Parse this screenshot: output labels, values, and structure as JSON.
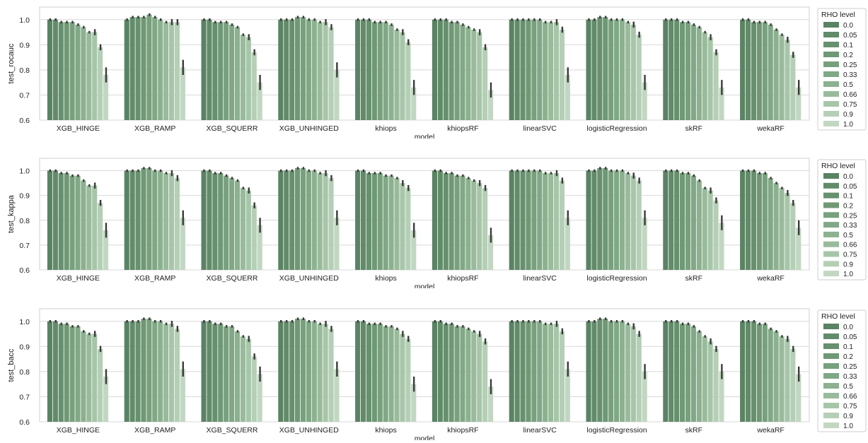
{
  "chart_data": [
    {
      "type": "bar",
      "xlabel": "model",
      "ylabel": "test_rocauc",
      "ylim": [
        0.6,
        1.05
      ],
      "yticks": [
        0.6,
        0.7,
        0.8,
        0.9,
        1.0
      ],
      "grid": true,
      "legend_title": "RHO level",
      "legend_position": "right",
      "legend": [
        "0.0",
        "0.05",
        "0.1",
        "0.2",
        "0.25",
        "0.33",
        "0.5",
        "0.66",
        "0.75",
        "0.9",
        "1.0"
      ],
      "categories": [
        "XGB_HINGE",
        "XGB_RAMP",
        "XGB_SQUERR",
        "XGB_UNHINGED",
        "khiops",
        "khiopsRF",
        "linearSVC",
        "logisticRegression",
        "skRF",
        "wekaRF"
      ],
      "series": [
        {
          "name": "0.0",
          "values": [
            1.0,
            1.0,
            1.0,
            1.0,
            1.0,
            1.0,
            1.0,
            1.0,
            1.0,
            1.0
          ]
        },
        {
          "name": "0.05",
          "values": [
            1.0,
            1.01,
            1.0,
            1.0,
            1.0,
            1.0,
            1.0,
            1.0,
            1.0,
            1.0
          ]
        },
        {
          "name": "0.1",
          "values": [
            0.99,
            1.01,
            0.99,
            1.0,
            1.0,
            1.0,
            1.0,
            1.01,
            1.0,
            0.99
          ]
        },
        {
          "name": "0.2",
          "values": [
            0.99,
            1.01,
            0.99,
            1.01,
            0.99,
            0.99,
            1.0,
            1.01,
            0.99,
            0.99
          ]
        },
        {
          "name": "0.25",
          "values": [
            0.99,
            1.02,
            0.99,
            1.01,
            0.99,
            0.99,
            1.0,
            1.0,
            0.99,
            0.99
          ]
        },
        {
          "name": "0.33",
          "values": [
            0.98,
            1.01,
            0.98,
            1.0,
            0.99,
            0.98,
            1.0,
            1.0,
            0.98,
            0.98
          ]
        },
        {
          "name": "0.5",
          "values": [
            0.97,
            1.0,
            0.97,
            1.0,
            0.98,
            0.97,
            0.99,
            1.0,
            0.97,
            0.96
          ]
        },
        {
          "name": "0.66",
          "values": [
            0.95,
            0.99,
            0.94,
            0.99,
            0.96,
            0.96,
            0.99,
            0.99,
            0.95,
            0.94
          ]
        },
        {
          "name": "0.75",
          "values": [
            0.95,
            0.99,
            0.93,
            0.99,
            0.95,
            0.95,
            0.99,
            0.98,
            0.93,
            0.92
          ]
        },
        {
          "name": "0.9",
          "values": [
            0.89,
            0.99,
            0.87,
            0.97,
            0.91,
            0.89,
            0.96,
            0.94,
            0.87,
            0.86
          ]
        },
        {
          "name": "1.0",
          "values": [
            0.78,
            0.81,
            0.75,
            0.8,
            0.73,
            0.72,
            0.78,
            0.75,
            0.73,
            0.73
          ]
        }
      ]
    },
    {
      "type": "bar",
      "xlabel": "model",
      "ylabel": "test_kappa",
      "ylim": [
        0.6,
        1.05
      ],
      "yticks": [
        0.6,
        0.7,
        0.8,
        0.9,
        1.0
      ],
      "grid": true,
      "legend_title": "RHO level",
      "legend_position": "right",
      "legend": [
        "0.0",
        "0.05",
        "0.1",
        "0.2",
        "0.25",
        "0.33",
        "0.5",
        "0.66",
        "0.75",
        "0.9",
        "1.0"
      ],
      "categories": [
        "XGB_HINGE",
        "XGB_RAMP",
        "XGB_SQUERR",
        "XGB_UNHINGED",
        "khiops",
        "khiopsRF",
        "linearSVC",
        "logisticRegression",
        "skRF",
        "wekaRF"
      ],
      "series": [
        {
          "name": "0.0",
          "values": [
            1.0,
            1.0,
            1.0,
            1.0,
            1.0,
            1.0,
            1.0,
            1.0,
            1.0,
            1.0
          ]
        },
        {
          "name": "0.05",
          "values": [
            1.0,
            1.0,
            1.0,
            1.0,
            1.0,
            1.0,
            1.0,
            1.0,
            1.0,
            1.0
          ]
        },
        {
          "name": "0.1",
          "values": [
            0.99,
            1.0,
            0.99,
            1.0,
            0.99,
            0.99,
            1.0,
            1.01,
            1.0,
            1.0
          ]
        },
        {
          "name": "0.2",
          "values": [
            0.99,
            1.01,
            0.99,
            1.01,
            0.99,
            0.99,
            1.0,
            1.01,
            0.99,
            0.99
          ]
        },
        {
          "name": "0.25",
          "values": [
            0.98,
            1.01,
            0.98,
            1.01,
            0.99,
            0.98,
            1.0,
            1.0,
            0.99,
            0.99
          ]
        },
        {
          "name": "0.33",
          "values": [
            0.98,
            1.0,
            0.97,
            1.0,
            0.98,
            0.98,
            1.0,
            1.0,
            0.98,
            0.97
          ]
        },
        {
          "name": "0.5",
          "values": [
            0.96,
            1.0,
            0.96,
            1.0,
            0.98,
            0.97,
            0.99,
            1.0,
            0.96,
            0.95
          ]
        },
        {
          "name": "0.66",
          "values": [
            0.94,
            0.99,
            0.93,
            0.99,
            0.97,
            0.96,
            0.99,
            0.99,
            0.93,
            0.93
          ]
        },
        {
          "name": "0.75",
          "values": [
            0.94,
            0.99,
            0.92,
            0.99,
            0.95,
            0.95,
            0.99,
            0.98,
            0.92,
            0.91
          ]
        },
        {
          "name": "0.9",
          "values": [
            0.87,
            0.97,
            0.86,
            0.97,
            0.93,
            0.93,
            0.96,
            0.96,
            0.88,
            0.87
          ]
        },
        {
          "name": "1.0",
          "values": [
            0.76,
            0.81,
            0.78,
            0.81,
            0.76,
            0.74,
            0.81,
            0.81,
            0.79,
            0.77
          ]
        }
      ]
    },
    {
      "type": "bar",
      "xlabel": "model",
      "ylabel": "test_bacc",
      "ylim": [
        0.6,
        1.05
      ],
      "yticks": [
        0.6,
        0.7,
        0.8,
        0.9,
        1.0
      ],
      "grid": true,
      "legend_title": "RHO level",
      "legend_position": "right",
      "legend": [
        "0.0",
        "0.05",
        "0.1",
        "0.2",
        "0.25",
        "0.33",
        "0.5",
        "0.66",
        "0.75",
        "0.9",
        "1.0"
      ],
      "categories": [
        "XGB_HINGE",
        "XGB_RAMP",
        "XGB_SQUERR",
        "XGB_UNHINGED",
        "khiops",
        "khiopsRF",
        "linearSVC",
        "logisticRegression",
        "skRF",
        "wekaRF"
      ],
      "series": [
        {
          "name": "0.0",
          "values": [
            1.0,
            1.0,
            1.0,
            1.0,
            1.0,
            1.0,
            1.0,
            1.0,
            1.0,
            1.0
          ]
        },
        {
          "name": "0.05",
          "values": [
            1.0,
            1.0,
            1.0,
            1.0,
            1.0,
            1.0,
            1.0,
            1.0,
            1.0,
            1.0
          ]
        },
        {
          "name": "0.1",
          "values": [
            0.99,
            1.0,
            0.99,
            1.0,
            0.99,
            0.99,
            1.0,
            1.01,
            1.0,
            1.0
          ]
        },
        {
          "name": "0.2",
          "values": [
            0.99,
            1.01,
            0.99,
            1.01,
            0.99,
            0.99,
            1.0,
            1.01,
            0.99,
            0.99
          ]
        },
        {
          "name": "0.25",
          "values": [
            0.98,
            1.01,
            0.98,
            1.01,
            0.99,
            0.98,
            1.0,
            1.0,
            0.99,
            0.99
          ]
        },
        {
          "name": "0.33",
          "values": [
            0.98,
            1.0,
            0.98,
            1.0,
            0.98,
            0.98,
            1.0,
            1.0,
            0.98,
            0.97
          ]
        },
        {
          "name": "0.5",
          "values": [
            0.96,
            1.0,
            0.96,
            1.0,
            0.98,
            0.97,
            0.99,
            1.0,
            0.96,
            0.96
          ]
        },
        {
          "name": "0.66",
          "values": [
            0.95,
            0.99,
            0.94,
            0.99,
            0.97,
            0.96,
            0.99,
            0.99,
            0.94,
            0.94
          ]
        },
        {
          "name": "0.75",
          "values": [
            0.95,
            0.99,
            0.93,
            0.99,
            0.95,
            0.95,
            0.99,
            0.98,
            0.92,
            0.93
          ]
        },
        {
          "name": "0.9",
          "values": [
            0.89,
            0.97,
            0.86,
            0.97,
            0.93,
            0.92,
            0.96,
            0.95,
            0.89,
            0.89
          ]
        },
        {
          "name": "1.0",
          "values": [
            0.78,
            0.81,
            0.79,
            0.81,
            0.75,
            0.74,
            0.81,
            0.8,
            0.8,
            0.79
          ]
        }
      ]
    }
  ],
  "colors": [
    "#5a8363",
    "#618b69",
    "#67906e",
    "#6f9875",
    "#78a07d",
    "#81a886",
    "#8cb190",
    "#99bb9c",
    "#a7c6a9",
    "#b5cfb6",
    "#c1d7c1"
  ],
  "errbar_color": "#3a3a3a"
}
